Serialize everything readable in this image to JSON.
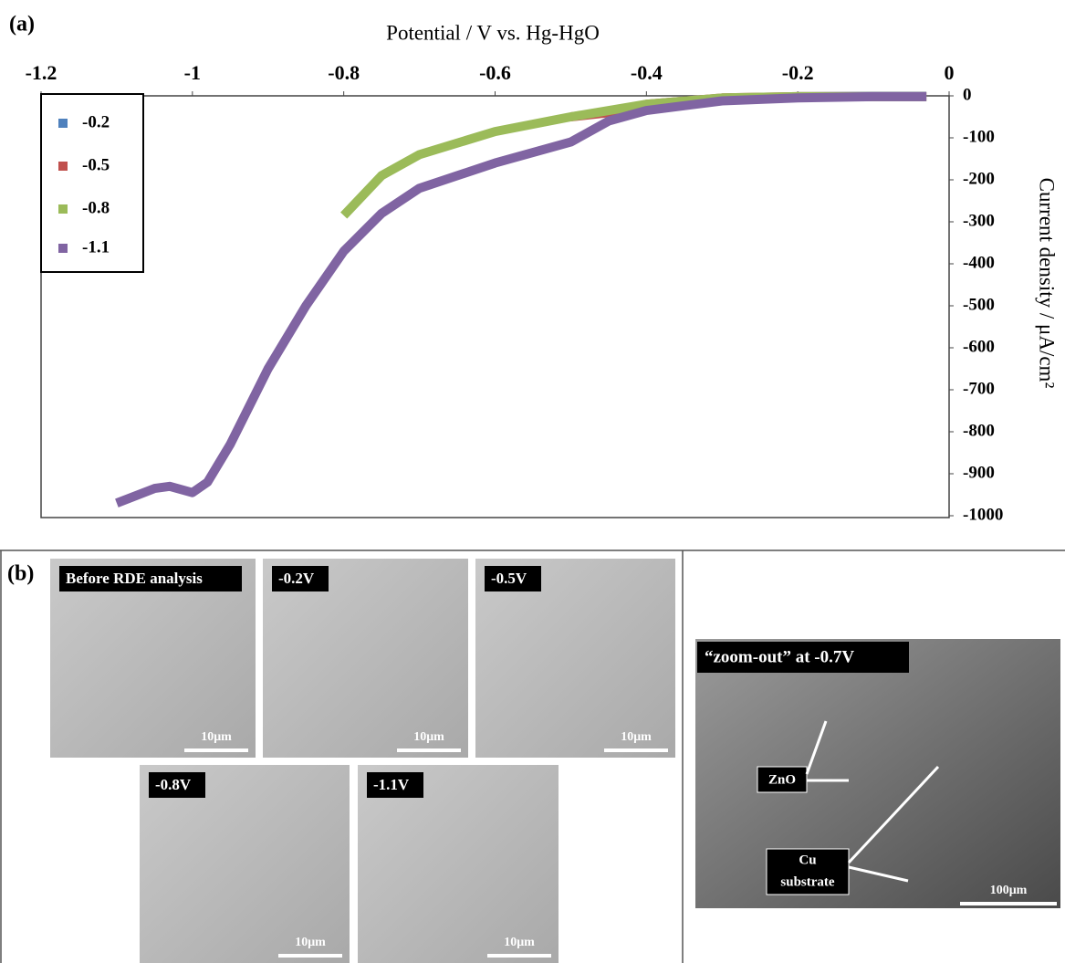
{
  "chart_data": {
    "type": "line",
    "panel_label": "(a)",
    "x_label": "Potential / V vs. Hg-HgO",
    "y_label": "Current density / μA/cm²",
    "xlim": [
      -1.2,
      0
    ],
    "xticks": [
      -1.2,
      -1,
      -0.8,
      -0.6,
      -0.4,
      -0.2,
      0
    ],
    "ylim": [
      -1000,
      0
    ],
    "yticks": [
      0,
      -100,
      -200,
      -300,
      -400,
      -500,
      -600,
      -700,
      -800,
      -900,
      -1000
    ],
    "legend": "top-left",
    "series": [
      {
        "name": "-0.2",
        "color": "#4f81bd",
        "x": [
          -0.2,
          -0.1,
          -0.03
        ],
        "values": [
          -2,
          -1,
          -1
        ]
      },
      {
        "name": "-0.5",
        "color": "#c0504d",
        "x": [
          -0.5,
          -0.45,
          -0.4,
          -0.3,
          -0.2,
          -0.03
        ],
        "values": [
          -50,
          -40,
          -20,
          -5,
          -2,
          -2
        ]
      },
      {
        "name": "-0.8",
        "color": "#9bbb59",
        "x": [
          -0.8,
          -0.75,
          -0.7,
          -0.6,
          -0.5,
          -0.4,
          -0.3,
          -0.2,
          -0.03
        ],
        "values": [
          -285,
          -190,
          -140,
          -85,
          -50,
          -20,
          -5,
          -2,
          -2
        ]
      },
      {
        "name": "-1.1",
        "color": "#8064a2",
        "x": [
          -1.1,
          -1.05,
          -1.03,
          -1.0,
          -0.98,
          -0.95,
          -0.9,
          -0.85,
          -0.8,
          -0.75,
          -0.7,
          -0.6,
          -0.5,
          -0.45,
          -0.4,
          -0.3,
          -0.2,
          -0.1,
          -0.03
        ],
        "values": [
          -970,
          -935,
          -930,
          -945,
          -920,
          -830,
          -650,
          -500,
          -370,
          -280,
          -220,
          -160,
          -110,
          -60,
          -35,
          -12,
          -5,
          -2,
          -2
        ]
      }
    ]
  },
  "panel_b": {
    "label": "(b)",
    "images": [
      {
        "label": "Before RDE analysis",
        "scale": "10μm"
      },
      {
        "label": "-0.2V",
        "scale": "10μm"
      },
      {
        "label": "-0.5V",
        "scale": "10μm"
      },
      {
        "label": "-0.8V",
        "scale": "10μm"
      },
      {
        "label": "-1.1V",
        "scale": "10μm"
      }
    ],
    "zoom": {
      "label": "“zoom-out” at -0.7V",
      "annotations": [
        "ZnO",
        [
          "Cu",
          "substrate"
        ]
      ],
      "scale": "100μm"
    }
  }
}
